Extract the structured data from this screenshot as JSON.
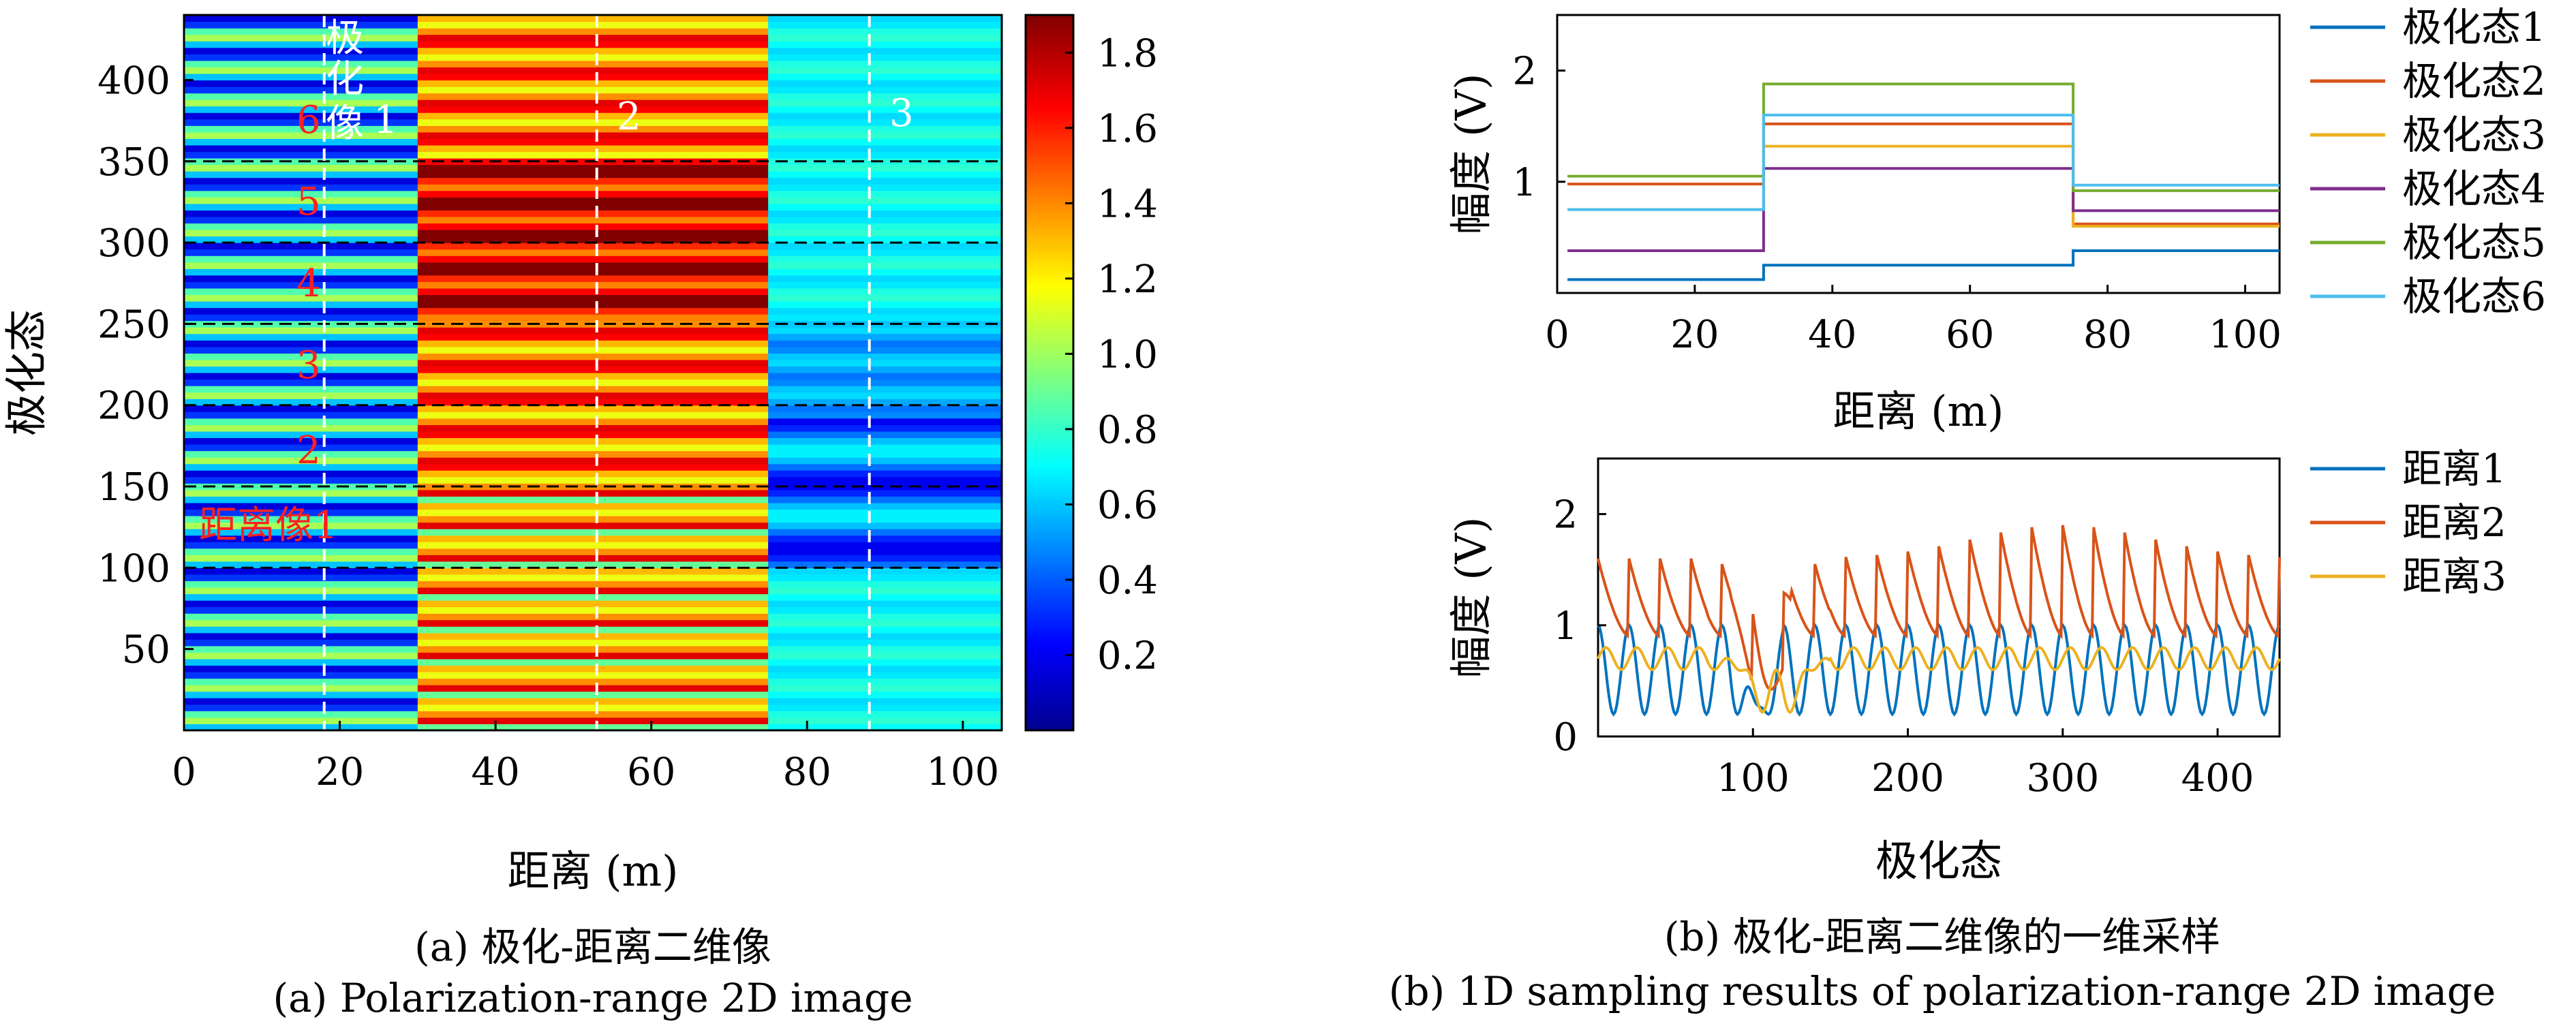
{
  "captions": {
    "a_cn": "(a) 极化-距离二维像",
    "a_en": "(a) Polarization-range 2D image",
    "b_cn": "(b) 极化-距离二维像的一维采样",
    "b_en": "(b) 1D sampling results of polarization-range 2D image"
  },
  "chart_data": [
    {
      "type": "heatmap",
      "xlabel": "距离 (m)",
      "ylabel": "极化态",
      "xlim": [
        0,
        105
      ],
      "ylim": [
        0,
        440
      ],
      "xticks": [
        "0",
        "20",
        "40",
        "60",
        "80",
        "100"
      ],
      "yticks": [
        "50",
        "100",
        "150",
        "200",
        "250",
        "300",
        "350",
        "400"
      ],
      "colorbar": {
        "range": [
          0,
          1.9
        ],
        "ticks": [
          "0.2",
          "0.4",
          "0.6",
          "0.8",
          "1.0",
          "1.2",
          "1.4",
          "1.6",
          "1.8"
        ],
        "colormap": "jet"
      },
      "regions": [
        {
          "x_range": [
            0,
            30
          ],
          "description": "banded blue/green/yellow stripes",
          "mean": 0.6
        },
        {
          "x_range": [
            30,
            75
          ],
          "description": "banded red/yellow, strongest for states 250-350",
          "mean": 1.6
        },
        {
          "x_range": [
            75,
            105
          ],
          "description": "cyan/blue with dark bands near states 100-150",
          "mean": 0.7
        }
      ],
      "vertical_lines_x": [
        18,
        53,
        88
      ],
      "vertical_line_labels": [
        "极化像1",
        "2",
        "3"
      ],
      "horizontal_lines_y": [
        100,
        150,
        200,
        250,
        300,
        350
      ],
      "state_labels": [
        "距离像1",
        "2",
        "3",
        "4",
        "5",
        "6"
      ]
    },
    {
      "type": "line",
      "xlabel": "距离 (m)",
      "ylabel": "幅度 (V)",
      "xlim": [
        0,
        105
      ],
      "ylim": [
        0,
        2.5
      ],
      "xticks": [
        "0",
        "20",
        "40",
        "60",
        "80",
        "100"
      ],
      "yticks": [
        "1",
        "2"
      ],
      "legend": "right",
      "series": [
        {
          "name": "极化态1",
          "color": "#0072BD",
          "x": [
            0,
            30,
            30,
            75,
            75,
            105
          ],
          "y": [
            0.12,
            0.12,
            0.25,
            0.25,
            0.38,
            0.38
          ]
        },
        {
          "name": "极化态2",
          "color": "#D95319",
          "x": [
            0,
            30,
            30,
            75,
            75,
            105
          ],
          "y": [
            0.98,
            0.98,
            1.52,
            1.52,
            0.62,
            0.62
          ]
        },
        {
          "name": "极化态3",
          "color": "#EDB120",
          "x": [
            0,
            30,
            30,
            75,
            75,
            105
          ],
          "y": [
            0.75,
            0.75,
            1.32,
            1.32,
            0.6,
            0.6
          ]
        },
        {
          "name": "极化态4",
          "color": "#7E2F8E",
          "x": [
            0,
            30,
            30,
            75,
            75,
            105
          ],
          "y": [
            0.38,
            0.38,
            1.12,
            1.12,
            0.74,
            0.74
          ]
        },
        {
          "name": "极化态5",
          "color": "#77AC30",
          "x": [
            0,
            30,
            30,
            75,
            75,
            105
          ],
          "y": [
            1.05,
            1.05,
            1.88,
            1.88,
            0.92,
            0.92
          ]
        },
        {
          "name": "极化态6",
          "color": "#4DBEEE",
          "x": [
            0,
            30,
            30,
            75,
            75,
            105
          ],
          "y": [
            0.75,
            0.75,
            1.6,
            1.6,
            0.97,
            0.97
          ]
        }
      ]
    },
    {
      "type": "line",
      "xlabel": "极化态",
      "ylabel": "幅度 (V)",
      "xlim": [
        0,
        440
      ],
      "ylim": [
        0,
        2.5
      ],
      "xticks": [
        "100",
        "200",
        "300",
        "400"
      ],
      "yticks": [
        "0",
        "1",
        "2"
      ],
      "legend": "right",
      "series": [
        {
          "name": "距离1",
          "color": "#0072BD",
          "period": 20,
          "mean": 0.6,
          "amplitude": 0.4,
          "note": "periodic oscillation, dips to ~0 near state 100"
        },
        {
          "name": "距离2",
          "color": "#D95319",
          "period": 20,
          "mean": 1.3,
          "amplitude": 0.45,
          "note": "sawtooth-like, peaks rise to ~1.9 near state 300"
        },
        {
          "name": "距离3",
          "color": "#EDB120",
          "period": 20,
          "mean": 0.7,
          "amplitude": 0.1,
          "note": "mostly flat ~0.7, dips near states 80-140"
        }
      ]
    }
  ]
}
